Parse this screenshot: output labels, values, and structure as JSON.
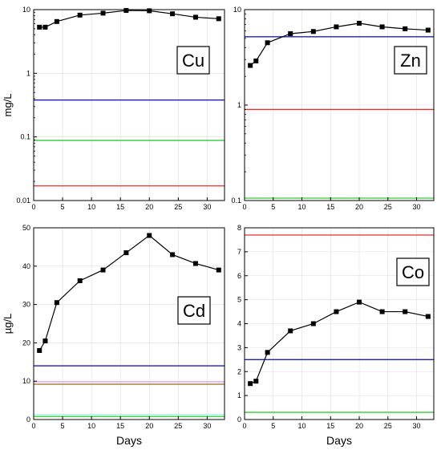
{
  "chart_data": [
    {
      "type": "line",
      "element": "Cu",
      "xlabel": "",
      "ylabel": "mg/L",
      "yscale": "log",
      "xlim": [
        0,
        33
      ],
      "ylim": [
        0.01,
        10
      ],
      "xticks": [
        "0",
        "5",
        "10",
        "15",
        "20",
        "25",
        "30"
      ],
      "yticks": [
        "0.01",
        "0.1",
        "1",
        "10"
      ],
      "series": [
        {
          "x": [
            1,
            2,
            4,
            8,
            12,
            16,
            20,
            24,
            28,
            32
          ],
          "y": [
            5.3,
            5.3,
            6.5,
            8.2,
            8.8,
            9.7,
            9.6,
            8.6,
            7.6,
            7.2
          ]
        }
      ],
      "hlines": [
        {
          "y": 0.38,
          "color": "#1f1fbf"
        },
        {
          "y": 0.088,
          "color": "#33cc33"
        },
        {
          "y": 0.017,
          "color": "#e03030"
        }
      ]
    },
    {
      "type": "line",
      "element": "Zn",
      "xlabel": "",
      "ylabel": "",
      "yscale": "log",
      "xlim": [
        0,
        33
      ],
      "ylim": [
        0.1,
        10
      ],
      "xticks": [
        "0",
        "5",
        "10",
        "15",
        "20",
        "25",
        "30"
      ],
      "yticks": [
        "0.1",
        "1",
        "10"
      ],
      "series": [
        {
          "x": [
            1,
            2,
            4,
            8,
            12,
            16,
            20,
            24,
            28,
            32
          ],
          "y": [
            2.6,
            2.9,
            4.5,
            5.6,
            5.9,
            6.6,
            7.2,
            6.6,
            6.3,
            6.1
          ]
        }
      ],
      "hlines": [
        {
          "y": 5.2,
          "color": "#1f1fbf"
        },
        {
          "y": 0.9,
          "color": "#e03030"
        },
        {
          "y": 0.106,
          "color": "#33cc33"
        }
      ]
    },
    {
      "type": "line",
      "element": "Cd",
      "xlabel": "Days",
      "ylabel": "µg/L",
      "yscale": "linear",
      "xlim": [
        0,
        33
      ],
      "ylim": [
        0,
        50
      ],
      "xticks": [
        "0",
        "5",
        "10",
        "15",
        "20",
        "25",
        "30"
      ],
      "yticks": [
        "0",
        "10",
        "20",
        "30",
        "40",
        "50"
      ],
      "series": [
        {
          "x": [
            1,
            2,
            4,
            8,
            12,
            16,
            20,
            24,
            28,
            32
          ],
          "y": [
            18,
            20.5,
            30.5,
            36.2,
            39,
            43.5,
            48,
            43,
            40.7,
            39
          ]
        }
      ],
      "hlines": [
        {
          "y": 14,
          "color": "#1f1fbf"
        },
        {
          "y": 9.8,
          "color": "#f0a0f0"
        },
        {
          "y": 9.2,
          "color": "#8a6d1f"
        },
        {
          "y": 1.3,
          "color": "#a0f0f0"
        },
        {
          "y": 0.8,
          "color": "#33cc33"
        }
      ]
    },
    {
      "type": "line",
      "element": "Co",
      "xlabel": "Days",
      "ylabel": "",
      "yscale": "linear",
      "xlim": [
        0,
        33
      ],
      "ylim": [
        0,
        8
      ],
      "xticks": [
        "0",
        "5",
        "10",
        "15",
        "20",
        "25",
        "30"
      ],
      "yticks": [
        "0",
        "1",
        "2",
        "3",
        "4",
        "5",
        "6",
        "7",
        "8"
      ],
      "series": [
        {
          "x": [
            1,
            2,
            4,
            8,
            12,
            16,
            20,
            24,
            28,
            32
          ],
          "y": [
            1.5,
            1.6,
            2.8,
            3.7,
            4.0,
            4.5,
            4.9,
            4.5,
            4.5,
            4.3
          ]
        }
      ],
      "hlines": [
        {
          "y": 7.7,
          "color": "#e03030"
        },
        {
          "y": 2.5,
          "color": "#1f1fbf"
        },
        {
          "y": 0.3,
          "color": "#33cc33"
        }
      ]
    }
  ]
}
